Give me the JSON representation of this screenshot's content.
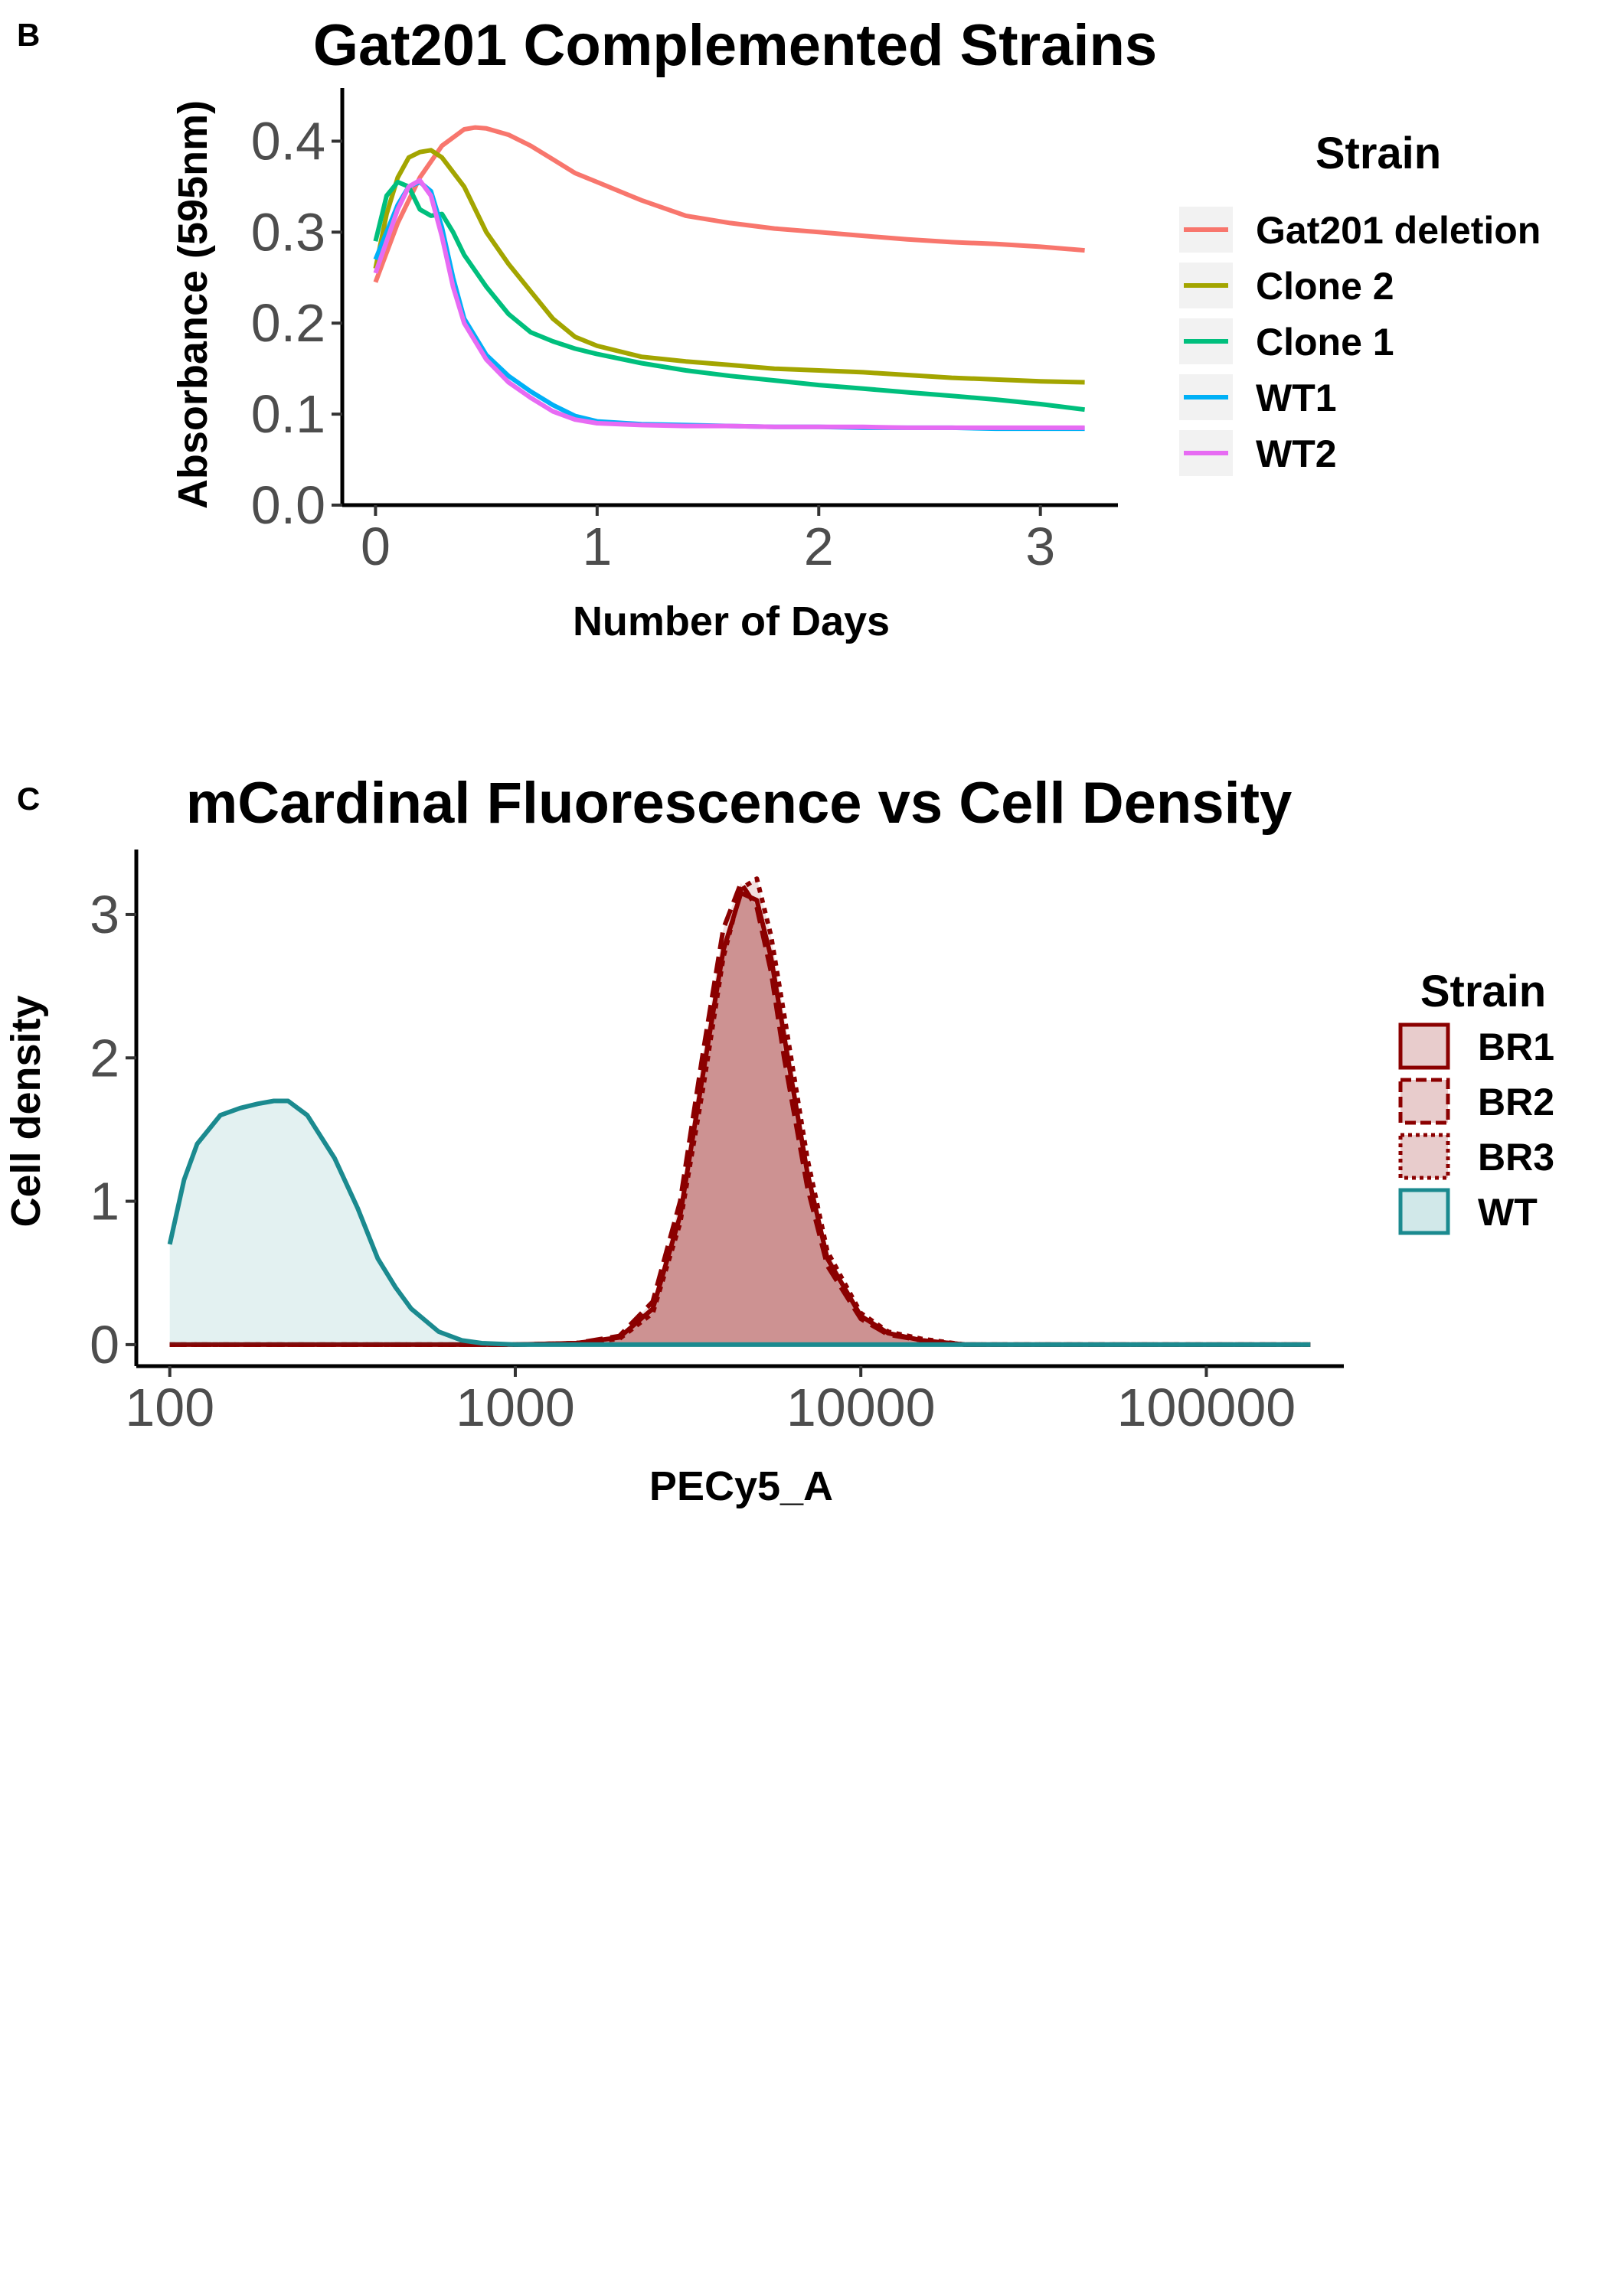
{
  "chart_data": [
    {
      "panel_label": "B",
      "type": "line",
      "title": "Gat201 Complemented Strains",
      "xlabel": "Number of Days",
      "ylabel": "Absorbance (595nm)",
      "xlim": [
        -0.15,
        3.35
      ],
      "ylim": [
        0,
        0.45
      ],
      "xticks": [
        0,
        1,
        2,
        3
      ],
      "xtick_labels": [
        "0",
        "1",
        "2",
        "3"
      ],
      "yticks": [
        0,
        0.1,
        0.2,
        0.3,
        0.4
      ],
      "ytick_labels": [
        "0.0",
        "0.1",
        "0.2",
        "0.3",
        "0.4"
      ],
      "grid": false,
      "legend": {
        "title": "Strain",
        "position": "right"
      },
      "series": [
        {
          "name": "Gat201 deletion",
          "color": "#F8766D",
          "x": [
            0,
            0.1,
            0.2,
            0.3,
            0.4,
            0.45,
            0.5,
            0.6,
            0.7,
            0.8,
            0.9,
            1.0,
            1.2,
            1.4,
            1.6,
            1.8,
            2.0,
            2.2,
            2.4,
            2.6,
            2.8,
            3.0,
            3.2
          ],
          "y": [
            0.245,
            0.31,
            0.36,
            0.395,
            0.413,
            0.415,
            0.414,
            0.407,
            0.395,
            0.38,
            0.365,
            0.355,
            0.335,
            0.318,
            0.31,
            0.304,
            0.3,
            0.296,
            0.292,
            0.289,
            0.287,
            0.284,
            0.28
          ]
        },
        {
          "name": "Clone 2",
          "color": "#A3A500",
          "x": [
            0,
            0.05,
            0.1,
            0.15,
            0.2,
            0.25,
            0.3,
            0.4,
            0.5,
            0.6,
            0.7,
            0.8,
            0.9,
            1.0,
            1.2,
            1.4,
            1.6,
            1.8,
            2.0,
            2.2,
            2.4,
            2.6,
            2.8,
            3.0,
            3.2
          ],
          "y": [
            0.26,
            0.32,
            0.36,
            0.382,
            0.388,
            0.39,
            0.382,
            0.35,
            0.3,
            0.265,
            0.235,
            0.205,
            0.185,
            0.175,
            0.163,
            0.158,
            0.154,
            0.15,
            0.148,
            0.146,
            0.143,
            0.14,
            0.138,
            0.136,
            0.135
          ]
        },
        {
          "name": "Clone 1",
          "color": "#00BF7D",
          "x": [
            0,
            0.05,
            0.1,
            0.15,
            0.2,
            0.25,
            0.3,
            0.35,
            0.4,
            0.5,
            0.6,
            0.7,
            0.8,
            0.9,
            1.0,
            1.2,
            1.4,
            1.6,
            1.8,
            2.0,
            2.2,
            2.4,
            2.6,
            2.8,
            3.0,
            3.2
          ],
          "y": [
            0.29,
            0.34,
            0.355,
            0.35,
            0.325,
            0.318,
            0.32,
            0.3,
            0.275,
            0.24,
            0.21,
            0.19,
            0.18,
            0.172,
            0.166,
            0.156,
            0.148,
            0.142,
            0.137,
            0.132,
            0.128,
            0.124,
            0.12,
            0.116,
            0.111,
            0.105
          ]
        },
        {
          "name": "WT1",
          "color": "#00B0F6",
          "x": [
            0,
            0.05,
            0.1,
            0.15,
            0.2,
            0.25,
            0.3,
            0.35,
            0.4,
            0.5,
            0.6,
            0.7,
            0.8,
            0.9,
            1.0,
            1.2,
            1.4,
            1.6,
            1.8,
            2.0,
            2.2,
            2.4,
            2.6,
            2.8,
            3.0,
            3.2
          ],
          "y": [
            0.27,
            0.3,
            0.33,
            0.35,
            0.355,
            0.345,
            0.305,
            0.25,
            0.205,
            0.165,
            0.142,
            0.125,
            0.11,
            0.098,
            0.092,
            0.089,
            0.088,
            0.087,
            0.086,
            0.086,
            0.085,
            0.085,
            0.085,
            0.084,
            0.084,
            0.084
          ]
        },
        {
          "name": "WT2",
          "color": "#E76BF3",
          "x": [
            0,
            0.05,
            0.1,
            0.15,
            0.2,
            0.25,
            0.3,
            0.35,
            0.4,
            0.5,
            0.6,
            0.7,
            0.8,
            0.9,
            1.0,
            1.2,
            1.4,
            1.6,
            1.8,
            2.0,
            2.2,
            2.4,
            2.6,
            2.8,
            3.0,
            3.2
          ],
          "y": [
            0.255,
            0.29,
            0.325,
            0.35,
            0.357,
            0.34,
            0.295,
            0.24,
            0.2,
            0.16,
            0.135,
            0.118,
            0.103,
            0.094,
            0.09,
            0.088,
            0.087,
            0.087,
            0.086,
            0.086,
            0.086,
            0.085,
            0.085,
            0.085,
            0.085,
            0.085
          ]
        }
      ]
    },
    {
      "panel_label": "C",
      "type": "area",
      "title": "mCardinal Fluorescence vs Cell Density",
      "xlabel": "PECy5_A",
      "ylabel": "Cell density",
      "xscale": "log10",
      "xlim": [
        80,
        250000
      ],
      "ylim": [
        -0.15,
        3.4
      ],
      "xticks": [
        100,
        1000,
        10000,
        100000
      ],
      "xtick_labels": [
        "100",
        "1000",
        "10000",
        "100000"
      ],
      "yticks": [
        0,
        1,
        2,
        3
      ],
      "ytick_labels": [
        "0",
        "1",
        "2",
        "3"
      ],
      "grid": false,
      "legend": {
        "title": "Strain",
        "position": "right"
      },
      "series": [
        {
          "name": "BR1",
          "color": "#8B0000",
          "fill": "#8B0000",
          "fill_opacity": 0.25,
          "linestyle": "solid",
          "x": [
            100,
            1000,
            1500,
            2000,
            2500,
            3000,
            3500,
            4000,
            4500,
            5000,
            5500,
            6000,
            7000,
            8000,
            10000,
            12000,
            15000,
            20000,
            200000
          ],
          "y": [
            0,
            0,
            0.01,
            0.05,
            0.25,
            0.9,
            1.9,
            2.75,
            3.15,
            3.1,
            2.7,
            2.15,
            1.2,
            0.6,
            0.2,
            0.08,
            0.03,
            0,
            0
          ]
        },
        {
          "name": "BR2",
          "color": "#8B0000",
          "fill": "#8B0000",
          "fill_opacity": 0.12,
          "linestyle": "dashed",
          "x": [
            100,
            1000,
            1500,
            2000,
            2500,
            3000,
            3500,
            4000,
            4500,
            5000,
            5500,
            6000,
            7000,
            8000,
            10000,
            12000,
            15000,
            20000,
            200000
          ],
          "y": [
            0,
            0,
            0.01,
            0.06,
            0.3,
            1.0,
            2.05,
            2.9,
            3.22,
            3.05,
            2.6,
            2.0,
            1.1,
            0.55,
            0.18,
            0.07,
            0.03,
            0,
            0
          ]
        },
        {
          "name": "BR3",
          "color": "#8B0000",
          "fill": "#8B0000",
          "fill_opacity": 0.12,
          "linestyle": "dotted",
          "x": [
            100,
            1000,
            1500,
            2000,
            2500,
            3000,
            3500,
            4000,
            4500,
            5000,
            5500,
            6000,
            7000,
            8000,
            10000,
            12000,
            15000,
            20000,
            200000
          ],
          "y": [
            0,
            0,
            0.01,
            0.04,
            0.22,
            0.85,
            1.8,
            2.7,
            3.18,
            3.25,
            2.85,
            2.3,
            1.3,
            0.65,
            0.22,
            0.09,
            0.04,
            0,
            0
          ]
        },
        {
          "name": "WT",
          "color": "#1B8A8F",
          "fill": "#1B8A8F",
          "fill_opacity": 0.12,
          "linestyle": "solid",
          "x": [
            100,
            110,
            120,
            140,
            160,
            180,
            200,
            220,
            250,
            300,
            350,
            400,
            450,
            500,
            600,
            700,
            800,
            1000,
            1500,
            200000
          ],
          "y": [
            0.7,
            1.15,
            1.4,
            1.6,
            1.65,
            1.68,
            1.7,
            1.7,
            1.6,
            1.3,
            0.95,
            0.6,
            0.4,
            0.25,
            0.09,
            0.03,
            0.01,
            0,
            0,
            0
          ]
        }
      ]
    }
  ]
}
